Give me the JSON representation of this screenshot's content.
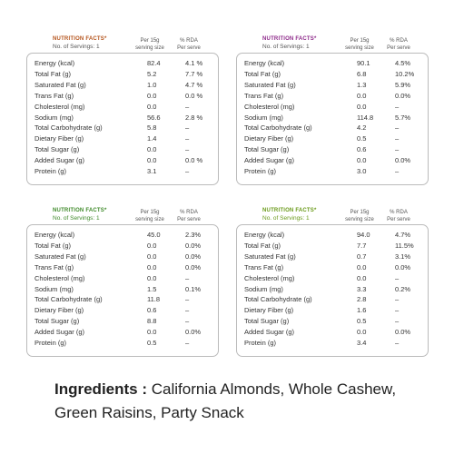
{
  "panels": [
    {
      "title": "NUTRITION FACTS*",
      "servings": "No. of Servings: 1",
      "col_per": [
        "Per 15g",
        "serving size"
      ],
      "col_rda": [
        "% RDA",
        "Per serve"
      ],
      "rows": [
        [
          "Energy (kcal)",
          "82.4",
          "4.1 %"
        ],
        [
          "Total Fat (g)",
          "5.2",
          "7.7 %"
        ],
        [
          "Saturated Fat (g)",
          "1.0",
          "4.7 %"
        ],
        [
          "Trans Fat (g)",
          "0.0",
          "0.0 %"
        ],
        [
          "Cholesterol (mg)",
          "0.0",
          "–"
        ],
        [
          "Sodium (mg)",
          "56.6",
          "2.8 %"
        ],
        [
          "Total Carbohydrate (g)",
          "5.8",
          "–"
        ],
        [
          "Dietary Fiber (g)",
          "1.4",
          "–"
        ],
        [
          "Total Sugar (g)",
          "0.0",
          "–"
        ],
        [
          "Added Sugar (g)",
          "0.0",
          "0.0 %"
        ],
        [
          "Protein (g)",
          "3.1",
          "–"
        ]
      ]
    },
    {
      "title": "NUTRITION FACTS*",
      "servings": "No. of Servings: 1",
      "col_per": [
        "Per 15g",
        "serving size"
      ],
      "col_rda": [
        "% RDA",
        "Per serve"
      ],
      "rows": [
        [
          "Energy (kcal)",
          "90.1",
          "4.5%"
        ],
        [
          "Total Fat (g)",
          "6.8",
          "10.2%"
        ],
        [
          "Saturated Fat (g)",
          "1.3",
          "5.9%"
        ],
        [
          "Trans Fat (g)",
          "0.0",
          "0.0%"
        ],
        [
          "Cholesterol (mg)",
          "0.0",
          "–"
        ],
        [
          "Sodium (mg)",
          "114.8",
          "5.7%"
        ],
        [
          "Total Carbohydrate (g)",
          "4.2",
          "–"
        ],
        [
          "Dietary Fiber (g)",
          "0.5",
          "–"
        ],
        [
          "Total Sugar (g)",
          "0.6",
          "–"
        ],
        [
          "Added Sugar (g)",
          "0.0",
          "0.0%"
        ],
        [
          "Protein (g)",
          "3.0",
          "–"
        ]
      ]
    },
    {
      "title": "NUTRITION FACTS*",
      "servings": "No. of Servings: 1",
      "col_per": [
        "Per 15g",
        "serving size"
      ],
      "col_rda": [
        "% RDA",
        "Per serve"
      ],
      "rows": [
        [
          "Energy (kcal)",
          "45.0",
          "2.3%"
        ],
        [
          "Total Fat (g)",
          "0.0",
          "0.0%"
        ],
        [
          "Saturated Fat (g)",
          "0.0",
          "0.0%"
        ],
        [
          "Trans Fat (g)",
          "0.0",
          "0.0%"
        ],
        [
          "Cholesterol (mg)",
          "0.0",
          "–"
        ],
        [
          "Sodium (mg)",
          "1.5",
          "0.1%"
        ],
        [
          "Total Carbohydrate (g)",
          "11.8",
          "–"
        ],
        [
          "Dietary Fiber (g)",
          "0.6",
          "–"
        ],
        [
          "Total Sugar (g)",
          "8.8",
          "–"
        ],
        [
          "Added Sugar (g)",
          "0.0",
          "0.0%"
        ],
        [
          "Protein (g)",
          "0.5",
          "–"
        ]
      ]
    },
    {
      "title": "NUTRITION FACTS*",
      "servings": "No. of Servings: 1",
      "col_per": [
        "Per 15g",
        "serving size"
      ],
      "col_rda": [
        "% RDA",
        "Per serve"
      ],
      "rows": [
        [
          "Energy (kcal)",
          "94.0",
          "4.7%"
        ],
        [
          "Total Fat (g)",
          "7.7",
          "11.5%"
        ],
        [
          "Saturated Fat (g)",
          "0.7",
          "3.1%"
        ],
        [
          "Trans Fat (g)",
          "0.0",
          "0.0%"
        ],
        [
          "Cholesterol (mg)",
          "0.0",
          "–"
        ],
        [
          "Sodium (mg)",
          "3.3",
          "0.2%"
        ],
        [
          "Total Carbohydrate (g)",
          "2.8",
          "–"
        ],
        [
          "Dietary Fiber (g)",
          "1.6",
          "–"
        ],
        [
          "Total Sugar (g)",
          "0.5",
          "–"
        ],
        [
          "Added Sugar (g)",
          "0.0",
          "0.0%"
        ],
        [
          "Protein (g)",
          "3.4",
          "–"
        ]
      ]
    }
  ],
  "ingredients": {
    "label": "Ingredients :",
    "text": "California Almonds, Whole Cashew, Green Raisins, Party Snack"
  }
}
